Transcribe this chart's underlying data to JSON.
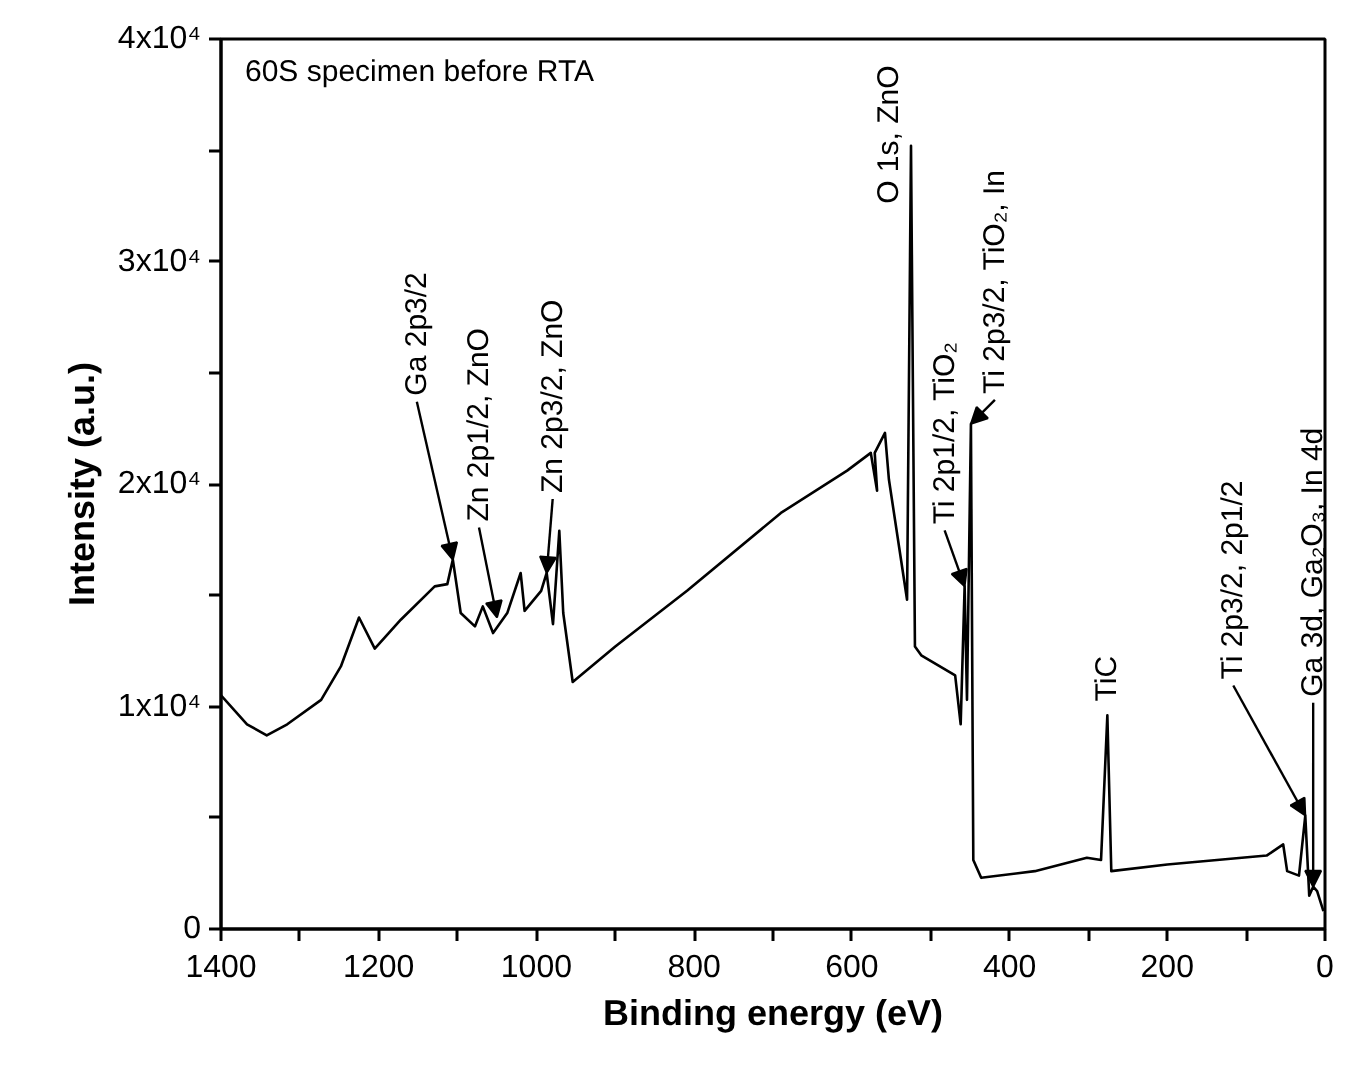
{
  "chart_data": {
    "type": "line",
    "xlabel": "Binding energy (eV)",
    "ylabel": "Intensity (a.u.)",
    "xlim": [
      1400,
      0
    ],
    "ylim": [
      0,
      40000
    ],
    "xticks": [
      1400,
      {
        "value": 1300,
        "label": null
      },
      1200,
      {
        "value": 1100,
        "label": null
      },
      1000,
      {
        "value": 900,
        "label": null
      },
      800,
      {
        "value": 700,
        "label": null
      },
      600,
      {
        "value": 500,
        "label": null
      },
      400,
      {
        "value": 300,
        "label": null
      },
      200,
      {
        "value": 100,
        "label": null
      },
      0
    ],
    "yticks": [
      0,
      {
        "value": 5000,
        "label": null
      },
      {
        "value": 10000,
        "label": "1x10⁴"
      },
      {
        "value": 15000,
        "label": null
      },
      {
        "value": 20000,
        "label": "2x10⁴"
      },
      {
        "value": 25000,
        "label": null
      },
      {
        "value": 30000,
        "label": "3x10⁴"
      },
      {
        "value": 35000,
        "label": null
      },
      {
        "value": 40000,
        "label": "4x10⁴"
      }
    ],
    "grid": false,
    "marker": "none",
    "line_style": "solid",
    "series": [
      {
        "color": "#000000",
        "x": [
          1400,
          1367,
          1342,
          1316,
          1273,
          1248,
          1225,
          1205,
          1172,
          1129,
          1113,
          1106,
          1096,
          1078,
          1068,
          1055,
          1037,
          1020,
          1015,
          994,
          987,
          979,
          971,
          966,
          954,
          900,
          809,
          690,
          606,
          576,
          568,
          571,
          558,
          553,
          530,
          525,
          520,
          512,
          469,
          462,
          457,
          454,
          449,
          446,
          436,
          368,
          302,
          284,
          276,
          271,
          200,
          74,
          53,
          48,
          33,
          25,
          20,
          15,
          10,
          2
        ],
        "values": [
          10500,
          9200,
          8700,
          9200,
          10300,
          11800,
          14000,
          12600,
          13900,
          15400,
          15500,
          16600,
          14200,
          13600,
          14500,
          13300,
          14200,
          16000,
          14300,
          15200,
          16000,
          13700,
          17900,
          14200,
          11100,
          12700,
          15200,
          18700,
          20600,
          21400,
          19700,
          21400,
          22300,
          20200,
          14800,
          35200,
          12700,
          12300,
          11400,
          9200,
          15400,
          10300,
          22700,
          3100,
          2300,
          2600,
          3200,
          3100,
          9600,
          2600,
          2900,
          3300,
          3800,
          2600,
          2400,
          5100,
          1500,
          1900,
          1700,
          800
        ]
      }
    ],
    "annotations": [
      "60S specimen before RTA",
      {
        "text": "Ga 2p3/2",
        "x": 1106,
        "y": 16600
      },
      {
        "text": "Zn 2p1/2, ZnO",
        "x": 1050,
        "y": 14000
      },
      {
        "text": "Zn 2p3/2, ZnO",
        "x": 987,
        "y": 16000
      },
      {
        "text": "O 1s, ZnO",
        "x": 525,
        "y": 35200
      },
      {
        "text": "Ti 2p1/2, TiO₂",
        "x": 457,
        "y": 15400
      },
      {
        "text": "Ti 2p3/2, TiO₂, In",
        "x": 449,
        "y": 22700
      },
      {
        "text": "TiC",
        "x": 276,
        "y": 9600
      },
      {
        "text": "Ti 2p3/2, 2p1/2",
        "x": 25,
        "y": 5100
      },
      {
        "text": "Ga 3d, Ga₂O₃, In 4d",
        "x": 15,
        "y": 1900
      }
    ]
  }
}
